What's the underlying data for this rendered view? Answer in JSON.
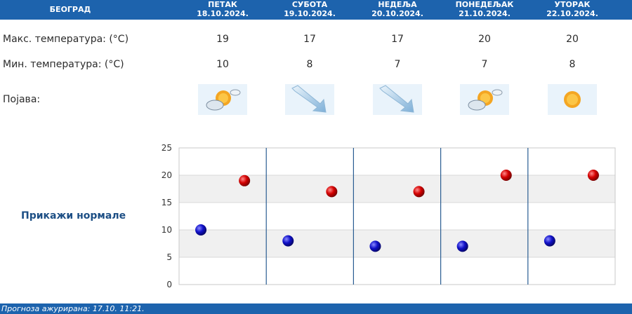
{
  "header": {
    "city": "БЕОГРАД",
    "days": [
      {
        "day": "ПЕТАК",
        "date": "18.10.2024."
      },
      {
        "day": "СУБОТА",
        "date": "19.10.2024."
      },
      {
        "day": "НЕДЕЉА",
        "date": "20.10.2024."
      },
      {
        "day": "ПОНЕДЕЉАК",
        "date": "21.10.2024."
      },
      {
        "day": "УТОРАК",
        "date": "22.10.2024."
      }
    ]
  },
  "rows": {
    "max_label": "Макс. температура: (°C)",
    "min_label": "Мин. температура: (°C)",
    "phen_label": "Појава:",
    "max_values": [
      "19",
      "17",
      "17",
      "20",
      "20"
    ],
    "min_values": [
      "10",
      "8",
      "7",
      "7",
      "8"
    ],
    "icons": [
      "partly-cloudy-icon",
      "arrow-down-right-icon",
      "arrow-down-right-icon",
      "partly-cloudy-icon",
      "sun-icon"
    ]
  },
  "normals_label": "Прикажи нормале",
  "footer_text": "Прогноза ажурирана:  17.10.  11:21.",
  "colors": {
    "header": "#1d63ad",
    "max_dot": "#cc0000",
    "min_dot": "#1010b8"
  },
  "chart_data": {
    "type": "scatter",
    "categories": [
      "ПЕТАК",
      "СУБОТА",
      "НЕДЕЉА",
      "ПОНЕДЕЉАК",
      "УТОРАК"
    ],
    "series": [
      {
        "values": [
          19,
          17,
          17,
          20,
          20
        ]
      },
      {
        "values": [
          10,
          8,
          7,
          7,
          8
        ]
      }
    ],
    "ylim": [
      0,
      25
    ],
    "yticks": [
      0,
      5,
      10,
      15,
      20,
      25
    ],
    "grid": true
  }
}
